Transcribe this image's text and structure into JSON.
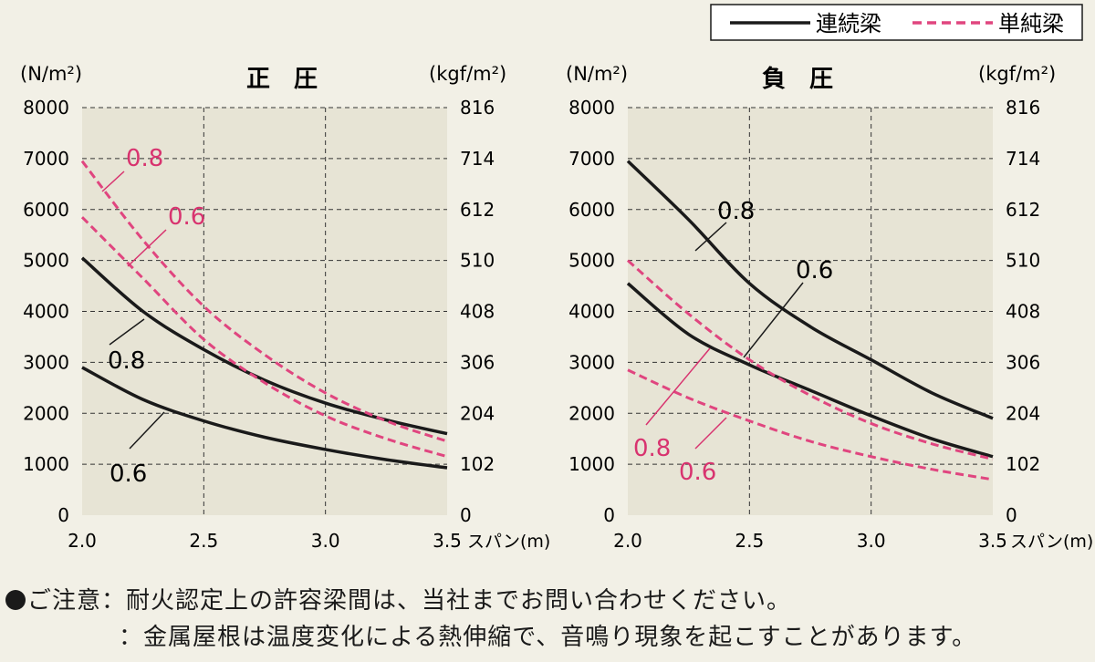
{
  "legend": {
    "continuous_label": "連続梁",
    "simple_label": "単純梁"
  },
  "colors": {
    "continuous": "#1a1a1a",
    "simple": "#e0457f",
    "plot_bg": "#e7e4d5",
    "label_simple": "#d8336f"
  },
  "notes": {
    "line1_prefix": "ご注意：",
    "line1_text": "耐火認定上の許容梁間は、当社までお問い合わせください。",
    "line2_prefix": "：",
    "line2_text": "金属屋根は温度変化による熱伸縮で、音鳴り現象を起こすことがあります。"
  },
  "chart_data": [
    {
      "type": "line",
      "title": "正　圧",
      "xlabel": "スパン(m)",
      "ylabel": "(N/m²)",
      "ylabel_right": "(kgf/m²)",
      "xlim": [
        2.0,
        3.5
      ],
      "ylim": [
        0,
        8000
      ],
      "x_ticks": [
        "2.0",
        "2.5",
        "3.0",
        "3.5"
      ],
      "y_ticks": [
        "0",
        "1000",
        "2000",
        "3000",
        "4000",
        "5000",
        "6000",
        "7000",
        "8000"
      ],
      "y_ticks_right": [
        "0",
        "102",
        "204",
        "306",
        "408",
        "510",
        "612",
        "714",
        "816"
      ],
      "grid": true,
      "series": [
        {
          "name": "0.8",
          "kind": "continuous",
          "x": [
            2.0,
            2.25,
            2.5,
            2.75,
            3.0,
            3.25,
            3.5
          ],
          "y": [
            5050,
            4000,
            3250,
            2650,
            2200,
            1870,
            1600
          ]
        },
        {
          "name": "0.6",
          "kind": "continuous",
          "x": [
            2.0,
            2.25,
            2.5,
            2.75,
            3.0,
            3.25,
            3.5
          ],
          "y": [
            2900,
            2270,
            1850,
            1530,
            1290,
            1090,
            930
          ]
        },
        {
          "name": "0.8",
          "kind": "simple",
          "x": [
            2.0,
            2.25,
            2.5,
            2.75,
            3.0,
            3.25,
            3.5
          ],
          "y": [
            6950,
            5400,
            4100,
            3150,
            2400,
            1850,
            1450
          ]
        },
        {
          "name": "0.6",
          "kind": "simple",
          "x": [
            2.0,
            2.25,
            2.5,
            2.75,
            3.0,
            3.25,
            3.5
          ],
          "y": [
            5850,
            4650,
            3450,
            2600,
            1950,
            1500,
            1150
          ]
        }
      ],
      "annotations": [
        {
          "text": "0.8",
          "kind": "simple"
        },
        {
          "text": "0.6",
          "kind": "simple"
        },
        {
          "text": "0.8",
          "kind": "continuous"
        },
        {
          "text": "0.6",
          "kind": "continuous"
        }
      ]
    },
    {
      "type": "line",
      "title": "負　圧",
      "xlabel": "スパン(m)",
      "ylabel": "(N/m²)",
      "ylabel_right": "(kgf/m²)",
      "xlim": [
        2.0,
        3.5
      ],
      "ylim": [
        0,
        8000
      ],
      "x_ticks": [
        "2.0",
        "2.5",
        "3.0",
        "3.5"
      ],
      "y_ticks": [
        "0",
        "1000",
        "2000",
        "3000",
        "4000",
        "5000",
        "6000",
        "7000",
        "8000"
      ],
      "y_ticks_right": [
        "0",
        "102",
        "204",
        "306",
        "408",
        "510",
        "612",
        "714",
        "816"
      ],
      "grid": true,
      "series": [
        {
          "name": "0.8",
          "kind": "continuous",
          "x": [
            2.0,
            2.25,
            2.5,
            2.75,
            3.0,
            3.25,
            3.5
          ],
          "y": [
            6950,
            5800,
            4550,
            3700,
            3050,
            2400,
            1900
          ]
        },
        {
          "name": "0.6",
          "kind": "continuous",
          "x": [
            2.0,
            2.25,
            2.5,
            2.75,
            3.0,
            3.25,
            3.5
          ],
          "y": [
            4550,
            3550,
            2950,
            2450,
            1950,
            1500,
            1150
          ]
        },
        {
          "name": "0.8",
          "kind": "simple",
          "x": [
            2.0,
            2.25,
            2.5,
            2.75,
            3.0,
            3.25,
            3.5
          ],
          "y": [
            5000,
            3950,
            3050,
            2350,
            1800,
            1400,
            1100
          ]
        },
        {
          "name": "0.6",
          "kind": "simple",
          "x": [
            2.0,
            2.25,
            2.5,
            2.75,
            3.0,
            3.25,
            3.5
          ],
          "y": [
            2850,
            2300,
            1850,
            1450,
            1150,
            900,
            700
          ]
        }
      ],
      "annotations": [
        {
          "text": "0.8",
          "kind": "continuous"
        },
        {
          "text": "0.6",
          "kind": "continuous"
        },
        {
          "text": "0.8",
          "kind": "simple"
        },
        {
          "text": "0.6",
          "kind": "simple"
        }
      ]
    }
  ]
}
